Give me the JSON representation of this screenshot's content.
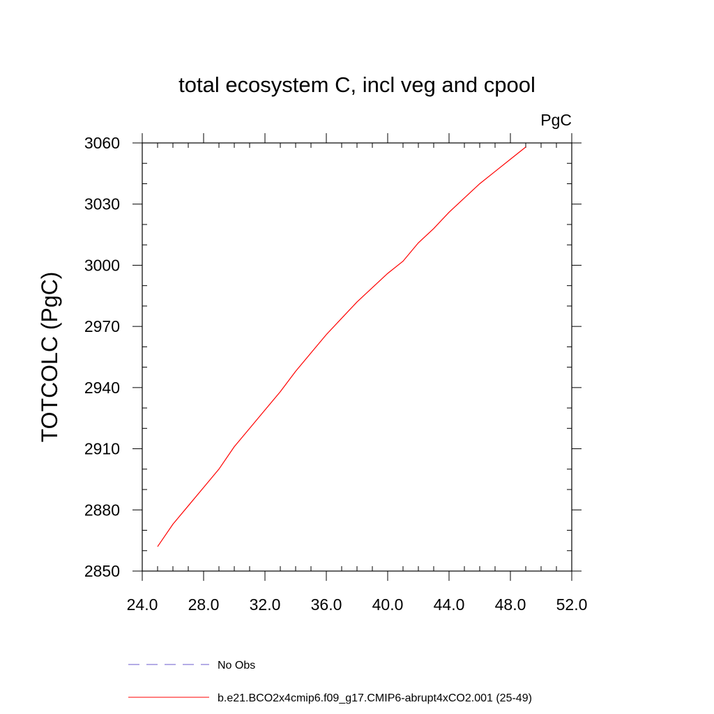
{
  "chart_data": {
    "type": "line",
    "title": "total ecosystem C, incl veg and cpool",
    "units_label": "PgC",
    "ylabel": "TOTCOLC  (PgC)",
    "xlabel": "",
    "xlim": [
      24.0,
      52.0
    ],
    "ylim": [
      2850,
      3060
    ],
    "xticks": [
      24.0,
      28.0,
      32.0,
      36.0,
      40.0,
      44.0,
      48.0,
      52.0
    ],
    "xtick_labels": [
      "24.0",
      "28.0",
      "32.0",
      "36.0",
      "40.0",
      "44.0",
      "48.0",
      "52.0"
    ],
    "yticks": [
      2850,
      2880,
      2910,
      2940,
      2970,
      3000,
      3030,
      3060
    ],
    "ytick_labels": [
      "2850",
      "2880",
      "2910",
      "2940",
      "2970",
      "3000",
      "3030",
      "3060"
    ],
    "x_minor_step": 1.0,
    "y_minor_step": 10,
    "grid": false,
    "legend_position": "bottom-left",
    "series": [
      {
        "name": "No Obs",
        "color": "#6a5acd",
        "dash": "dashed",
        "x": [],
        "y": []
      },
      {
        "name": "b.e21.BCO2x4cmip6.f09_g17.CMIP6-abrupt4xCO2.001 (25-49)",
        "color": "#ff0000",
        "dash": "solid",
        "x": [
          25,
          26,
          27,
          28,
          29,
          30,
          31,
          32,
          33,
          34,
          35,
          36,
          37,
          38,
          39,
          40,
          41,
          42,
          43,
          44,
          45,
          46,
          47,
          48,
          49
        ],
        "y": [
          2862,
          2873,
          2882,
          2891,
          2900,
          2911,
          2920,
          2929,
          2938,
          2948,
          2957,
          2966,
          2974,
          2982,
          2989,
          2996,
          3002,
          3011,
          3018,
          3026,
          3033,
          3040,
          3046,
          3052,
          3058
        ]
      }
    ]
  }
}
